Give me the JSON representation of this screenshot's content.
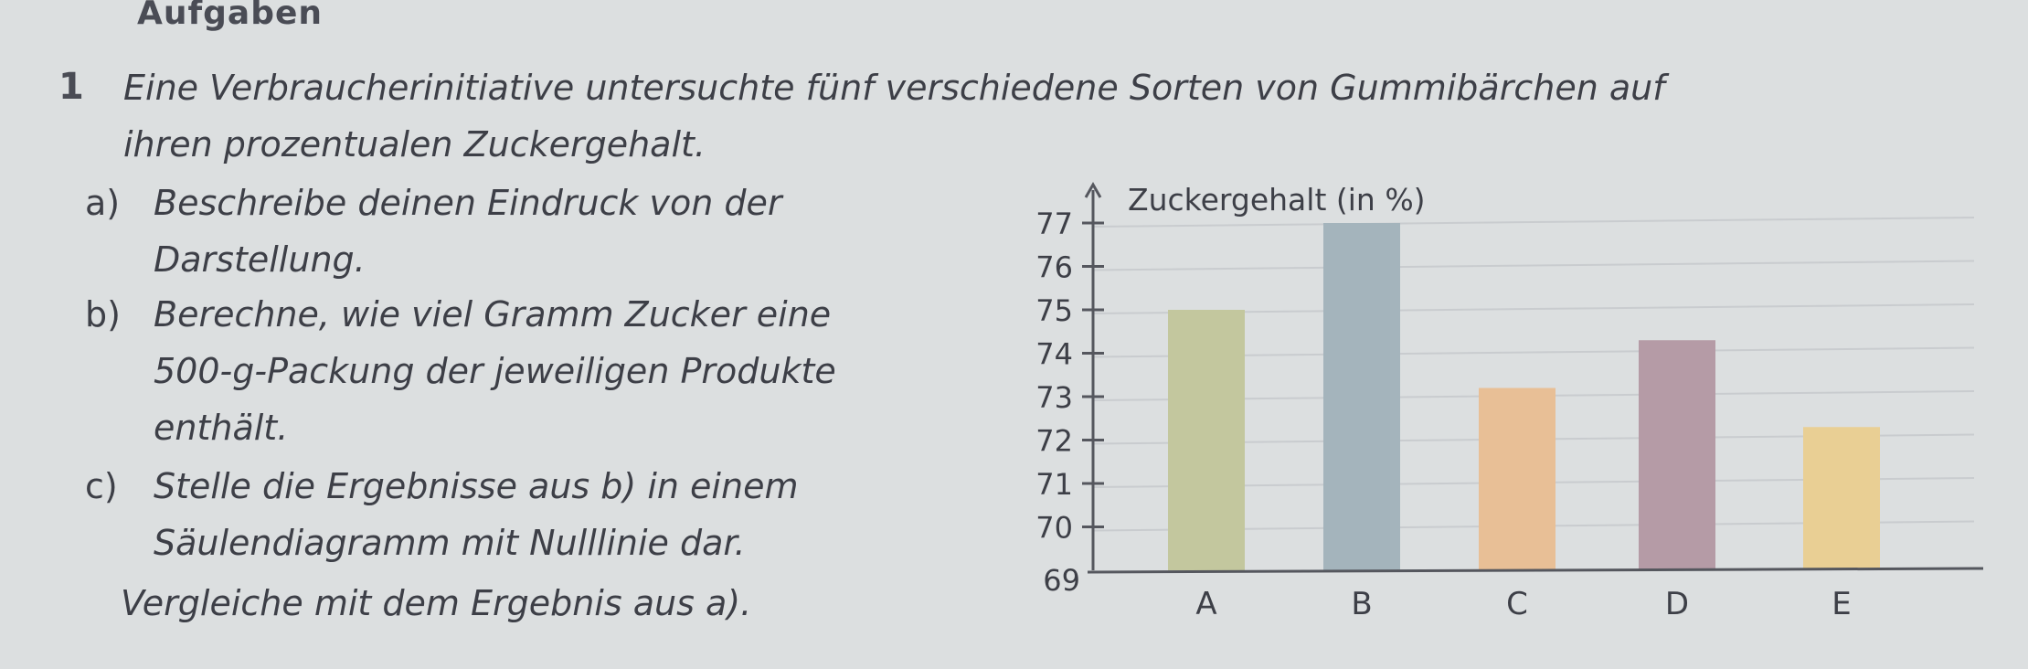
{
  "page": {
    "heading": "Aufgaben",
    "task_number": "1",
    "intro_line1": "Eine Verbraucherinitiative untersuchte fünf verschiedene Sorten von Gummibärchen auf",
    "intro_line2": "ihren prozentualen Zuckergehalt.",
    "a_label": "a)",
    "a_line1": "Beschreibe deinen Eindruck von der",
    "a_line2": "Darstellung.",
    "b_label": "b)",
    "b_line1": "Berechne, wie viel Gramm Zucker eine",
    "b_line2": "500-g-Packung der jeweiligen Produkte",
    "b_line3": "enthält.",
    "c_label": "c)",
    "c_line1": "Stelle die Ergebnisse aus b) in einem",
    "c_line2": "Säulendiagramm mit Nulllinie dar.",
    "c_line3": "Vergleiche mit dem Ergebnis aus a)."
  },
  "chart_data": {
    "type": "bar",
    "title": "",
    "xlabel": "",
    "ylabel": "Zuckergehalt (in %)",
    "categories": [
      "A",
      "B",
      "C",
      "D",
      "E"
    ],
    "values": [
      75.0,
      77.0,
      73.2,
      74.3,
      72.3
    ],
    "ylim": [
      69,
      77
    ],
    "yticks": [
      69,
      70,
      71,
      72,
      73,
      74,
      75,
      76,
      77
    ],
    "grid": true,
    "colors": [
      "#c3c79e",
      "#a4b4bc",
      "#e8bf96",
      "#b59ba6",
      "#e9cf94"
    ]
  }
}
